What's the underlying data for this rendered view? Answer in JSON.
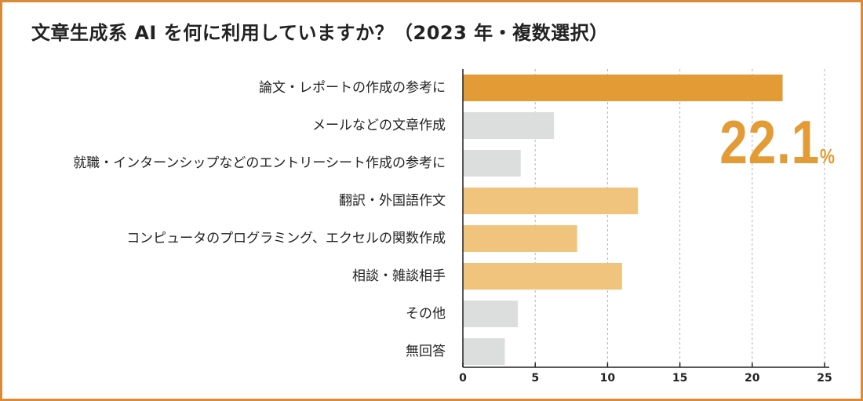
{
  "title": "文章生成系 AI を何に利用していますか？（2023 年・複数選択）",
  "callout": {
    "value": "22.1",
    "unit": "%"
  },
  "colors": {
    "highlight": "#e39b35",
    "orange_light": "#f0c47c",
    "gray": "#dcdedd",
    "frame": "#d98b3a",
    "grid": "#b5b5b5"
  },
  "chart_data": {
    "type": "bar",
    "orientation": "horizontal",
    "title": "文章生成系 AI を何に利用していますか？（2023 年・複数選択）",
    "categories": [
      "論文・レポートの作成の参考に",
      "メールなどの文章作成",
      "就職・インターンシップなどのエントリーシート作成の参考に",
      "翻訳・外国語作文",
      "コンピュータのプログラミング、エクセルの関数作成",
      "相談・雑談相手",
      "その他",
      "無回答"
    ],
    "values": [
      22.1,
      6.3,
      4.0,
      12.1,
      7.9,
      11.0,
      3.8,
      2.9
    ],
    "bar_colors": [
      "highlight",
      "gray",
      "gray",
      "orange_light",
      "orange_light",
      "orange_light",
      "gray",
      "gray"
    ],
    "xlim": [
      0,
      25
    ],
    "xticks": [
      0,
      5,
      10,
      15,
      20,
      25
    ],
    "grid": "vertical-dashed",
    "xlabel": "",
    "ylabel": ""
  }
}
